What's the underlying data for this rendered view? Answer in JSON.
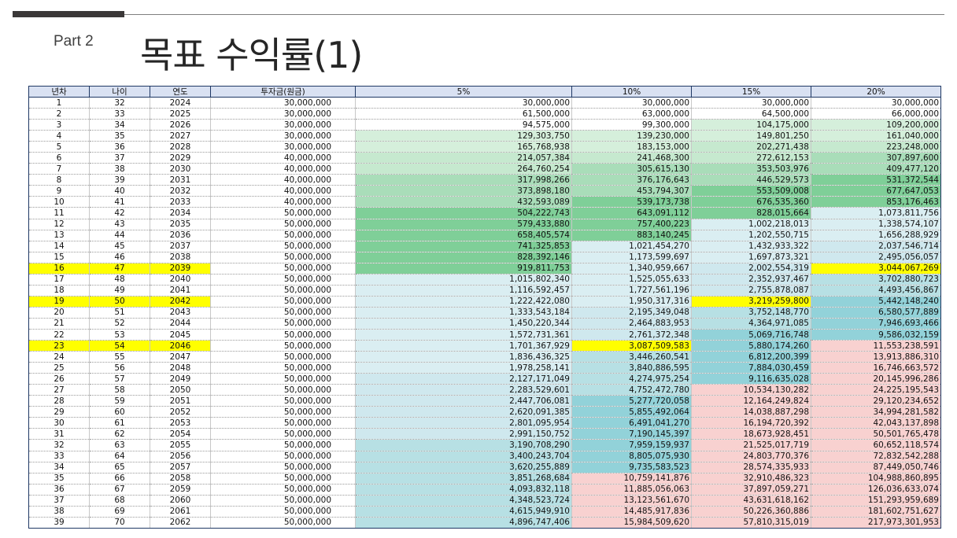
{
  "header": {
    "part": "Part 2",
    "title": "목표 수익률(1)"
  },
  "table": {
    "columns": [
      "년차",
      "나이",
      "연도",
      "투자금(원금)",
      "5%",
      "10%",
      "15%",
      "20%"
    ],
    "highlight_color": "#ffff00",
    "rows": [
      [
        "1",
        "32",
        "2024",
        "30,000,000",
        "30,000,000",
        "30,000,000",
        "30,000,000",
        "30,000,000"
      ],
      [
        "2",
        "33",
        "2025",
        "30,000,000",
        "61,500,000",
        "63,000,000",
        "64,500,000",
        "66,000,000"
      ],
      [
        "3",
        "34",
        "2026",
        "30,000,000",
        "94,575,000",
        "99,300,000",
        "104,175,000",
        "109,200,000"
      ],
      [
        "4",
        "35",
        "2027",
        "30,000,000",
        "129,303,750",
        "139,230,000",
        "149,801,250",
        "161,040,000"
      ],
      [
        "5",
        "36",
        "2028",
        "30,000,000",
        "165,768,938",
        "183,153,000",
        "202,271,438",
        "223,248,000"
      ],
      [
        "6",
        "37",
        "2029",
        "40,000,000",
        "214,057,384",
        "241,468,300",
        "272,612,153",
        "307,897,600"
      ],
      [
        "7",
        "38",
        "2030",
        "40,000,000",
        "264,760,254",
        "305,615,130",
        "353,503,976",
        "409,477,120"
      ],
      [
        "8",
        "39",
        "2031",
        "40,000,000",
        "317,998,266",
        "376,176,643",
        "446,529,573",
        "531,372,544"
      ],
      [
        "9",
        "40",
        "2032",
        "40,000,000",
        "373,898,180",
        "453,794,307",
        "553,509,008",
        "677,647,053"
      ],
      [
        "10",
        "41",
        "2033",
        "40,000,000",
        "432,593,089",
        "539,173,738",
        "676,535,360",
        "853,176,463"
      ],
      [
        "11",
        "42",
        "2034",
        "50,000,000",
        "504,222,743",
        "643,091,112",
        "828,015,664",
        "1,073,811,756"
      ],
      [
        "12",
        "43",
        "2035",
        "50,000,000",
        "579,433,880",
        "757,400,223",
        "1,002,218,013",
        "1,338,574,107"
      ],
      [
        "13",
        "44",
        "2036",
        "50,000,000",
        "658,405,574",
        "883,140,245",
        "1,202,550,715",
        "1,656,288,929"
      ],
      [
        "14",
        "45",
        "2037",
        "50,000,000",
        "741,325,853",
        "1,021,454,270",
        "1,432,933,322",
        "2,037,546,714"
      ],
      [
        "15",
        "46",
        "2038",
        "50,000,000",
        "828,392,146",
        "1,173,599,697",
        "1,697,873,321",
        "2,495,056,057"
      ],
      [
        "16",
        "47",
        "2039",
        "50,000,000",
        "919,811,753",
        "1,340,959,667",
        "2,002,554,319",
        "3,044,067,269"
      ],
      [
        "17",
        "48",
        "2040",
        "50,000,000",
        "1,015,802,340",
        "1,525,055,633",
        "2,352,937,467",
        "3,702,880,723"
      ],
      [
        "18",
        "49",
        "2041",
        "50,000,000",
        "1,116,592,457",
        "1,727,561,196",
        "2,755,878,087",
        "4,493,456,867"
      ],
      [
        "19",
        "50",
        "2042",
        "50,000,000",
        "1,222,422,080",
        "1,950,317,316",
        "3,219,259,800",
        "5,442,148,240"
      ],
      [
        "20",
        "51",
        "2043",
        "50,000,000",
        "1,333,543,184",
        "2,195,349,048",
        "3,752,148,770",
        "6,580,577,889"
      ],
      [
        "21",
        "52",
        "2044",
        "50,000,000",
        "1,450,220,344",
        "2,464,883,953",
        "4,364,971,085",
        "7,946,693,466"
      ],
      [
        "22",
        "53",
        "2045",
        "50,000,000",
        "1,572,731,361",
        "2,761,372,348",
        "5,069,716,748",
        "9,586,032,159"
      ],
      [
        "23",
        "54",
        "2046",
        "50,000,000",
        "1,701,367,929",
        "3,087,509,583",
        "5,880,174,260",
        "11,553,238,591"
      ],
      [
        "24",
        "55",
        "2047",
        "50,000,000",
        "1,836,436,325",
        "3,446,260,541",
        "6,812,200,399",
        "13,913,886,310"
      ],
      [
        "25",
        "56",
        "2048",
        "50,000,000",
        "1,978,258,141",
        "3,840,886,595",
        "7,884,030,459",
        "16,746,663,572"
      ],
      [
        "26",
        "57",
        "2049",
        "50,000,000",
        "2,127,171,049",
        "4,274,975,254",
        "9,116,635,028",
        "20,145,996,286"
      ],
      [
        "27",
        "58",
        "2050",
        "50,000,000",
        "2,283,529,601",
        "4,752,472,780",
        "10,534,130,282",
        "24,225,195,543"
      ],
      [
        "28",
        "59",
        "2051",
        "50,000,000",
        "2,447,706,081",
        "5,277,720,058",
        "12,164,249,824",
        "29,120,234,652"
      ],
      [
        "29",
        "60",
        "2052",
        "50,000,000",
        "2,620,091,385",
        "5,855,492,064",
        "14,038,887,298",
        "34,994,281,582"
      ],
      [
        "30",
        "61",
        "2053",
        "50,000,000",
        "2,801,095,954",
        "6,491,041,270",
        "16,194,720,392",
        "42,043,137,898"
      ],
      [
        "31",
        "62",
        "2054",
        "50,000,000",
        "2,991,150,752",
        "7,190,145,397",
        "18,673,928,451",
        "50,501,765,478"
      ],
      [
        "32",
        "63",
        "2055",
        "50,000,000",
        "3,190,708,290",
        "7,959,159,937",
        "21,525,017,719",
        "60,652,118,574"
      ],
      [
        "33",
        "64",
        "2056",
        "50,000,000",
        "3,400,243,704",
        "8,805,075,930",
        "24,803,770,376",
        "72,832,542,288"
      ],
      [
        "34",
        "65",
        "2057",
        "50,000,000",
        "3,620,255,889",
        "9,735,583,523",
        "28,574,335,933",
        "87,449,050,746"
      ],
      [
        "35",
        "66",
        "2058",
        "50,000,000",
        "3,851,268,684",
        "10,759,141,876",
        "32,910,486,323",
        "104,988,860,895"
      ],
      [
        "36",
        "67",
        "2059",
        "50,000,000",
        "4,093,832,118",
        "11,885,056,063",
        "37,897,059,271",
        "126,036,633,074"
      ],
      [
        "37",
        "68",
        "2060",
        "50,000,000",
        "4,348,523,724",
        "13,123,561,670",
        "43,631,618,162",
        "151,293,959,689"
      ],
      [
        "38",
        "69",
        "2061",
        "50,000,000",
        "4,615,949,910",
        "14,485,917,836",
        "50,226,360,886",
        "181,602,751,627"
      ],
      [
        "39",
        "70",
        "2062",
        "50,000,000",
        "4,896,747,406",
        "15,984,509,620",
        "57,810,315,019",
        "217,973,301,953"
      ]
    ],
    "highlighted_cells": [
      [
        15,
        0
      ],
      [
        15,
        1
      ],
      [
        15,
        2
      ],
      [
        15,
        7
      ],
      [
        18,
        0
      ],
      [
        18,
        1
      ],
      [
        18,
        2
      ],
      [
        18,
        6
      ],
      [
        22,
        0
      ],
      [
        22,
        1
      ],
      [
        22,
        2
      ],
      [
        22,
        5
      ]
    ]
  }
}
